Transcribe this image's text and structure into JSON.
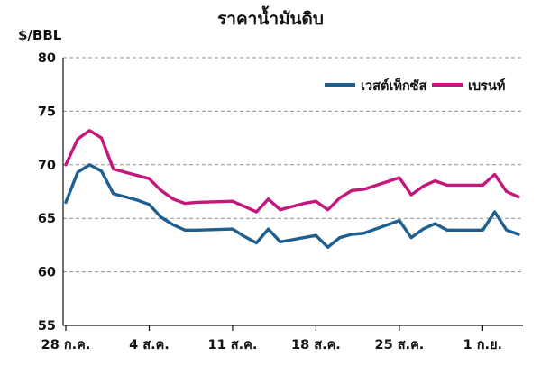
{
  "chart_data": {
    "type": "line",
    "title": "ราคาน้ำมันดิบ",
    "ylabel": "$/BBL",
    "xlabel": "",
    "ylim": [
      55,
      80
    ],
    "yticks": [
      55,
      60,
      65,
      70,
      75,
      80
    ],
    "xtick_labels": [
      "28 ก.ค.",
      "4 ส.ค.",
      "11 ส.ค.",
      "18 ส.ค.",
      "25 ส.ค.",
      "1 ก.ย."
    ],
    "xtick_positions": [
      0,
      7,
      14,
      21,
      28,
      35
    ],
    "grid": "horizontal",
    "legend": "top-right",
    "series": [
      {
        "name": "เวสต์เท็กซัส",
        "color": "#1f5f8f",
        "x": [
          0,
          1,
          2,
          3,
          4,
          5,
          6,
          7,
          8,
          9,
          10,
          11,
          14,
          15,
          16,
          17,
          18,
          19,
          20,
          21,
          22,
          23,
          24,
          25,
          28,
          29,
          30,
          31,
          32,
          35,
          36,
          37,
          38
        ],
        "values": [
          66.5,
          69.3,
          70.0,
          69.4,
          67.3,
          67.0,
          66.7,
          66.3,
          65.1,
          64.4,
          63.9,
          63.9,
          64.0,
          63.3,
          62.7,
          64.0,
          62.8,
          63.0,
          63.2,
          63.4,
          62.3,
          63.2,
          63.5,
          63.6,
          64.8,
          63.2,
          64.0,
          64.5,
          63.9,
          63.9,
          65.6,
          63.9,
          63.5
        ]
      },
      {
        "name": "เบรนท์",
        "color": "#c4177e",
        "x": [
          0,
          1,
          2,
          3,
          4,
          5,
          6,
          7,
          8,
          9,
          10,
          11,
          14,
          15,
          16,
          17,
          18,
          19,
          20,
          21,
          22,
          23,
          24,
          25,
          28,
          29,
          30,
          31,
          32,
          35,
          36,
          37,
          38
        ],
        "values": [
          70.0,
          72.4,
          73.2,
          72.5,
          69.6,
          69.3,
          69.0,
          68.7,
          67.6,
          66.8,
          66.4,
          66.5,
          66.6,
          66.1,
          65.6,
          66.8,
          65.8,
          66.1,
          66.4,
          66.6,
          65.8,
          66.9,
          67.6,
          67.7,
          68.8,
          67.2,
          68.0,
          68.5,
          68.1,
          68.1,
          69.1,
          67.5,
          67.0
        ]
      }
    ]
  }
}
